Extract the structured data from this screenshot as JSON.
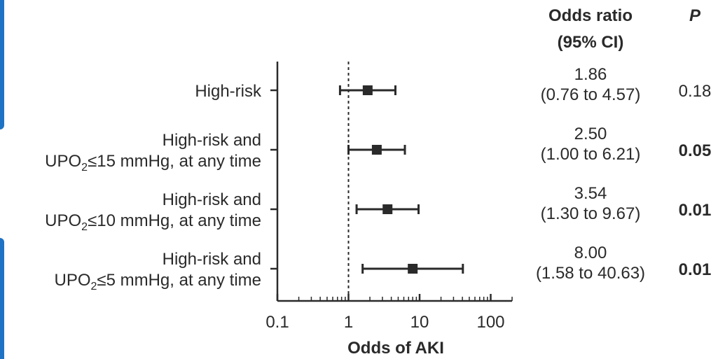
{
  "chart_data": {
    "type": "forest",
    "x_scale": "log",
    "xlim": [
      0.1,
      200
    ],
    "reference_line": 1,
    "xlabel": "Odds of AKI",
    "x_ticks": [
      "0.1",
      "1",
      "10",
      "100"
    ],
    "x_tick_values": [
      0.1,
      1,
      10,
      100
    ],
    "column_headers": {
      "or_line1": "Odds ratio",
      "or_line2": "(95% CI)",
      "p": "P"
    },
    "rows": [
      {
        "label_line1": "High-risk",
        "label_line2": "",
        "or": 1.86,
        "lo": 0.76,
        "hi": 4.57,
        "or_text": "1.86",
        "ci_text": "(0.76 to 4.57)",
        "p": "0.18",
        "p_bold": false
      },
      {
        "label_line1": "High-risk and",
        "label_line2": "UPO₂≤15 mmHg, at any time",
        "or": 2.5,
        "lo": 1.0,
        "hi": 6.21,
        "or_text": "2.50",
        "ci_text": "(1.00 to 6.21)",
        "p": "0.05",
        "p_bold": true
      },
      {
        "label_line1": "High-risk and",
        "label_line2": "UPO₂≤10 mmHg, at any time",
        "or": 3.54,
        "lo": 1.3,
        "hi": 9.67,
        "or_text": "3.54",
        "ci_text": "(1.30 to 9.67)",
        "p": "0.01",
        "p_bold": true
      },
      {
        "label_line1": "High-risk and",
        "label_line2": "UPO₂≤5 mmHg, at any time",
        "or": 8.0,
        "lo": 1.58,
        "hi": 40.63,
        "or_text": "8.00",
        "ci_text": "(1.58 to 40.63)",
        "p": "0.01",
        "p_bold": true
      }
    ]
  }
}
